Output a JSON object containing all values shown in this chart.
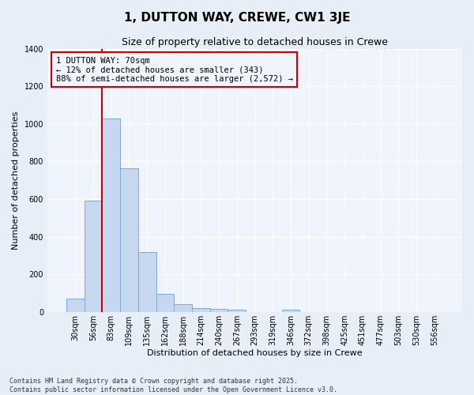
{
  "title": "1, DUTTON WAY, CREWE, CW1 3JE",
  "subtitle": "Size of property relative to detached houses in Crewe",
  "xlabel": "Distribution of detached houses by size in Crewe",
  "ylabel": "Number of detached properties",
  "categories": [
    "30sqm",
    "56sqm",
    "83sqm",
    "109sqm",
    "135sqm",
    "162sqm",
    "188sqm",
    "214sqm",
    "240sqm",
    "267sqm",
    "293sqm",
    "319sqm",
    "346sqm",
    "372sqm",
    "398sqm",
    "425sqm",
    "451sqm",
    "477sqm",
    "503sqm",
    "530sqm",
    "556sqm"
  ],
  "values": [
    70,
    590,
    1030,
    765,
    320,
    95,
    42,
    22,
    15,
    10,
    0,
    0,
    13,
    0,
    0,
    0,
    0,
    0,
    0,
    0,
    0
  ],
  "bar_color": "#c5d8f0",
  "bar_edgecolor": "#7aadd4",
  "vline_color": "#cc0000",
  "vline_pos": 1.5,
  "ylim": [
    0,
    1400
  ],
  "yticks": [
    0,
    200,
    400,
    600,
    800,
    1000,
    1200,
    1400
  ],
  "annotation_title": "1 DUTTON WAY: 70sqm",
  "annotation_line1": "← 12% of detached houses are smaller (343)",
  "annotation_line2": "88% of semi-detached houses are larger (2,572) →",
  "annotation_box_edgecolor": "#cc0000",
  "fig_bg_color": "#e8eef8",
  "plot_bg_color": "#f0f4fc",
  "grid_color": "#ffffff",
  "footer1": "Contains HM Land Registry data © Crown copyright and database right 2025.",
  "footer2": "Contains public sector information licensed under the Open Government Licence v3.0.",
  "title_fontsize": 11,
  "subtitle_fontsize": 9,
  "ylabel_fontsize": 8,
  "xlabel_fontsize": 8,
  "tick_fontsize": 7,
  "annot_fontsize": 7.5,
  "footer_fontsize": 6
}
